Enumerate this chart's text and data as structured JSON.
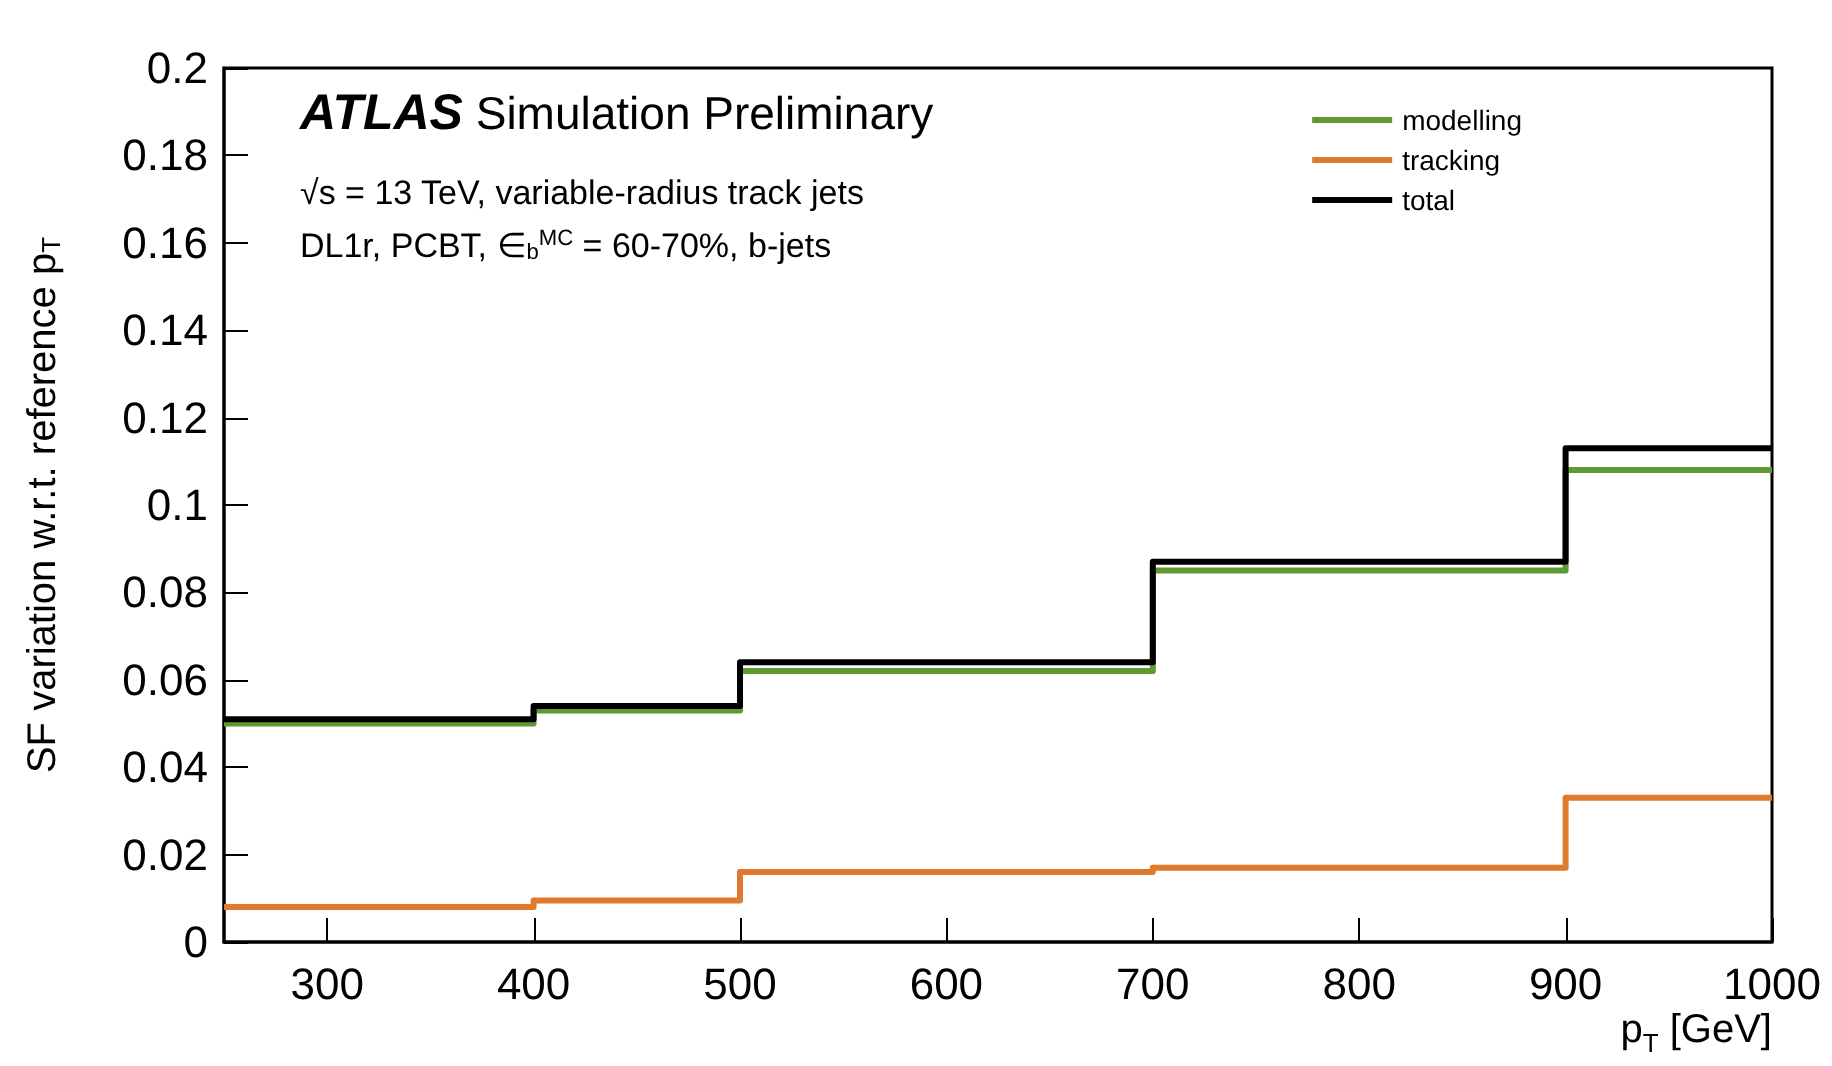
{
  "chart_data": {
    "type": "step",
    "xlabel": "p$_{T}$ [GeV]",
    "ylabel": "SF variation w.r.t. reference p$_{T}$",
    "annotations": [
      "ATLAS Simulation Preliminary",
      "√s = 13 TeV, variable-radius track jets",
      "DL1r, PCBT, ∈$_{b}$$^{MC}$ = 60-70%, b-jets"
    ],
    "x": [
      250,
      400,
      500,
      700,
      900,
      1000
    ],
    "series": [
      {
        "name": "modelling",
        "color": "#5e9a2f",
        "values": [
          0.05,
          0.053,
          0.062,
          0.085,
          0.108,
          0.108
        ]
      },
      {
        "name": "tracking",
        "color": "#e07a2c",
        "values": [
          0.008,
          0.0095,
          0.016,
          0.017,
          0.033,
          0.033
        ]
      },
      {
        "name": "total",
        "color": "#000000",
        "values": [
          0.051,
          0.054,
          0.064,
          0.087,
          0.113,
          0.113
        ]
      }
    ],
    "xlim": [
      250,
      1000
    ],
    "xticks": [
      300,
      400,
      500,
      600,
      700,
      800,
      900,
      1000
    ],
    "ylim": [
      0,
      0.2
    ],
    "yticks": [
      0,
      0.02,
      0.04,
      0.06,
      0.08,
      0.1,
      0.12,
      0.14,
      0.16,
      0.18,
      0.2
    ],
    "legend": "top right",
    "grid": false
  }
}
